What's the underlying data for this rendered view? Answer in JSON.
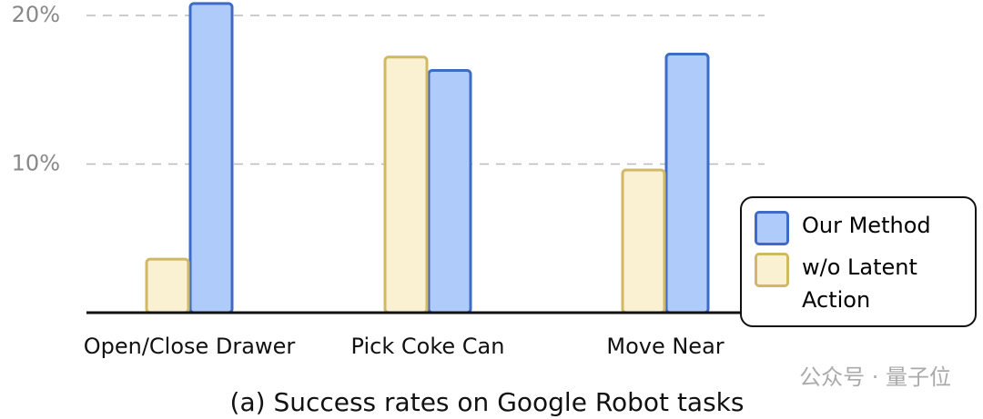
{
  "chart_data": {
    "type": "bar",
    "title": "(a) Success rates on Google Robot tasks",
    "categories": [
      "Open/Close Drawer",
      "Pick Coke Can",
      "Move Near"
    ],
    "series": [
      {
        "name": "Our Method",
        "color": "#aecbfa",
        "values": [
          20.8,
          16.3,
          17.4
        ]
      },
      {
        "name": "w/o Latent Action",
        "color": "#faf1d2",
        "values": [
          3.6,
          17.2,
          9.6
        ]
      }
    ],
    "ylim": [
      0,
      21
    ],
    "yticks": [
      {
        "value": 10,
        "label": "10%"
      },
      {
        "value": 20,
        "label": "20%"
      }
    ],
    "grid": true,
    "legend": "lower right",
    "watermark": "公众号 · 量子位"
  }
}
